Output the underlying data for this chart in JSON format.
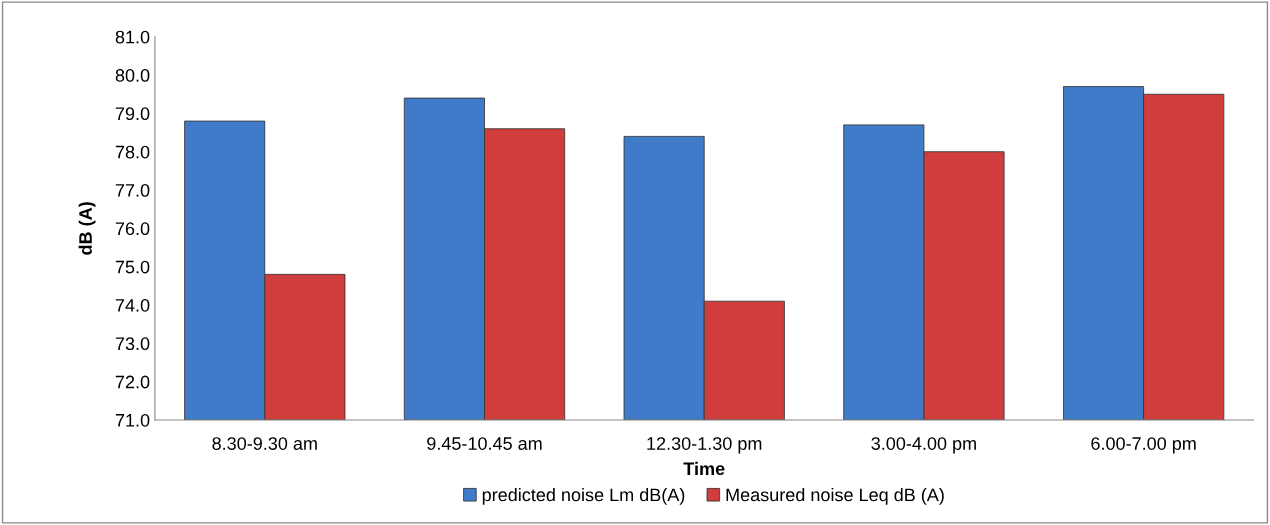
{
  "chart_data": {
    "type": "bar",
    "xlabel": "Time",
    "ylabel": "dB (A)",
    "categories": [
      "8.30-9.30 am",
      "9.45-10.45 am",
      "12.30-1.30 pm",
      "3.00-4.00 pm",
      "6.00-7.00 pm"
    ],
    "series": [
      {
        "name": "predicted noise Lm dB(A)",
        "color": "#3f7bc9",
        "values": [
          78.8,
          79.4,
          78.4,
          78.7,
          79.7
        ]
      },
      {
        "name": "Measured noise Leq dB (A)",
        "color": "#cf3e3c",
        "values": [
          74.8,
          78.6,
          74.1,
          78.0,
          79.5
        ]
      }
    ],
    "ylim": [
      71.0,
      81.0
    ],
    "yticks": [
      {
        "value": 71,
        "label": "71.0"
      },
      {
        "value": 72,
        "label": "72.0"
      },
      {
        "value": 73,
        "label": "73.0"
      },
      {
        "value": 74,
        "label": "74.0"
      },
      {
        "value": 75,
        "label": "75.0"
      },
      {
        "value": 76,
        "label": "76.0"
      },
      {
        "value": 77,
        "label": "77.0"
      },
      {
        "value": 78,
        "label": "78.0"
      },
      {
        "value": 79,
        "label": "79.0"
      },
      {
        "value": 80,
        "label": "80.0"
      },
      {
        "value": 81,
        "label": "81.0"
      }
    ],
    "grid": false,
    "legend": "bottom"
  }
}
